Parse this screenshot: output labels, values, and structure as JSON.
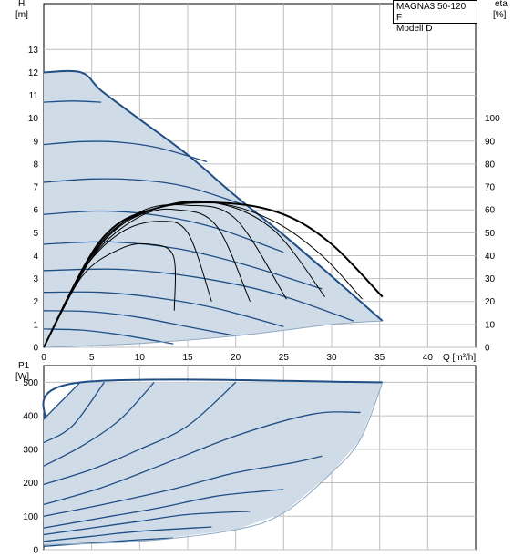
{
  "legend": {
    "model": "MAGNA3 50-120 F",
    "variant": "Modell D"
  },
  "colors": {
    "curve": "#1f4e85",
    "fill": "#cfdbe7",
    "grid": "#c0c0c0",
    "eff": "#000000"
  },
  "chart_data": [
    {
      "type": "line",
      "title": "",
      "ylabel_line1": "H",
      "ylabel_line2": "[m]",
      "y2label_line1": "eta",
      "y2label_line2": "[%]",
      "xlabel": "Q [m³/h]",
      "xlim": [
        0,
        45
      ],
      "ylim": [
        0,
        15
      ],
      "xticks": [
        "5",
        "10",
        "15",
        "20",
        "25",
        "30",
        "35",
        "40"
      ],
      "yticks": [
        "0",
        "1",
        "2",
        "3",
        "4",
        "5",
        "6",
        "7",
        "8",
        "9",
        "10",
        "11",
        "12",
        "13"
      ],
      "y2ticks": [
        "0",
        "10",
        "20",
        "30",
        "40",
        "50",
        "60",
        "70",
        "80",
        "90",
        "100"
      ],
      "y2lim": [
        0,
        150
      ],
      "grid": true,
      "operating_envelope": {
        "max_curve": [
          [
            0,
            12
          ],
          [
            3.9,
            12
          ],
          [
            6,
            11.2
          ],
          [
            10,
            9.95
          ],
          [
            15,
            8.4
          ],
          [
            20,
            6.6
          ],
          [
            25,
            4.9
          ],
          [
            30,
            3.1
          ],
          [
            35.3,
            1.15
          ]
        ],
        "min_curve": [
          [
            0,
            0
          ],
          [
            10,
            0.17
          ],
          [
            20,
            0.5
          ],
          [
            30,
            1.0
          ],
          [
            35.3,
            1.15
          ]
        ]
      },
      "series": [
        {
          "values": [
            [
              0,
              10.7
            ],
            [
              3,
              10.75
            ],
            [
              6,
              10.7
            ]
          ]
        },
        {
          "values": [
            [
              0,
              8.85
            ],
            [
              4,
              8.98
            ],
            [
              8,
              8.95
            ],
            [
              12,
              8.7
            ],
            [
              17,
              8.1
            ]
          ]
        },
        {
          "values": [
            [
              0,
              7.2
            ],
            [
              5,
              7.35
            ],
            [
              10,
              7.3
            ],
            [
              15,
              7.0
            ],
            [
              21,
              6.2
            ]
          ]
        },
        {
          "values": [
            [
              0,
              5.8
            ],
            [
              6,
              5.95
            ],
            [
              12,
              5.75
            ],
            [
              18,
              5.2
            ],
            [
              25,
              4.15
            ]
          ]
        },
        {
          "values": [
            [
              0,
              4.5
            ],
            [
              7,
              4.6
            ],
            [
              14,
              4.3
            ],
            [
              21,
              3.6
            ],
            [
              29,
              2.55
            ]
          ]
        },
        {
          "values": [
            [
              0,
              3.35
            ],
            [
              8,
              3.4
            ],
            [
              16,
              3.05
            ],
            [
              24,
              2.35
            ],
            [
              32.3,
              1.15
            ]
          ]
        },
        {
          "values": [
            [
              0,
              2.4
            ],
            [
              6,
              2.4
            ],
            [
              12,
              2.15
            ],
            [
              18,
              1.7
            ],
            [
              25,
              0.9
            ]
          ]
        },
        {
          "values": [
            [
              0,
              1.6
            ],
            [
              5,
              1.55
            ],
            [
              10,
              1.3
            ],
            [
              15,
              0.9
            ],
            [
              20,
              0.5
            ]
          ]
        },
        {
          "values": [
            [
              0,
              0.8
            ],
            [
              4,
              0.75
            ],
            [
              8,
              0.55
            ],
            [
              13.5,
              0.15
            ]
          ]
        }
      ],
      "efficiency_curves": [
        {
          "values": [
            [
              0,
              0
            ],
            [
              4,
              31
            ],
            [
              8,
              43
            ],
            [
              11,
              45
            ],
            [
              13.5,
              40
            ],
            [
              13.6,
              16
            ]
          ]
        },
        {
          "values": [
            [
              0,
              0
            ],
            [
              4,
              33
            ],
            [
              8,
              50
            ],
            [
              12,
              55
            ],
            [
              15,
              50
            ],
            [
              17.5,
              20
            ]
          ]
        },
        {
          "values": [
            [
              0,
              0
            ],
            [
              5,
              39
            ],
            [
              10,
              57
            ],
            [
              14,
              60
            ],
            [
              18,
              53
            ],
            [
              21.5,
              20
            ]
          ]
        },
        {
          "values": [
            [
              0,
              0
            ],
            [
              5,
              40
            ],
            [
              10,
              59
            ],
            [
              15,
              62
            ],
            [
              20,
              56
            ],
            [
              25.3,
              21
            ]
          ]
        },
        {
          "values": [
            [
              0,
              0
            ],
            [
              6,
              45
            ],
            [
              12,
              61
            ],
            [
              18,
              63
            ],
            [
              24,
              51
            ],
            [
              29.3,
              22
            ]
          ]
        },
        {
          "values": [
            [
              0,
              0
            ],
            [
              6,
              46
            ],
            [
              12,
              61
            ],
            [
              18,
              63
            ],
            [
              24,
              55
            ],
            [
              29,
              40
            ],
            [
              33.2,
              21
            ]
          ]
        },
        {
          "values": [
            [
              0,
              0
            ],
            [
              6,
              47
            ],
            [
              12,
              61
            ],
            [
              19,
              63
            ],
            [
              25,
              58
            ],
            [
              30,
              45
            ],
            [
              35.3,
              22
            ]
          ]
        }
      ]
    },
    {
      "type": "line",
      "title": "",
      "ylabel_line1": "P1",
      "ylabel_line2": "[W]",
      "xlim": [
        0,
        45
      ],
      "ylim": [
        0,
        550
      ],
      "yticks": [
        "0",
        "100",
        "200",
        "300",
        "400",
        "500"
      ],
      "grid": true,
      "operating_envelope": {
        "max_curve": [
          [
            0,
            390
          ],
          [
            3.9,
            500
          ],
          [
            35.3,
            500
          ]
        ],
        "min_curve": [
          [
            0,
            15
          ],
          [
            10,
            25
          ],
          [
            20,
            60
          ],
          [
            25,
            110
          ],
          [
            30,
            230
          ],
          [
            33,
            330
          ],
          [
            35.3,
            500
          ]
        ]
      },
      "series": [
        {
          "values": [
            [
              0,
              390
            ],
            [
              3.8,
              500
            ]
          ]
        },
        {
          "values": [
            [
              0,
              320
            ],
            [
              3,
              370
            ],
            [
              6.3,
              500
            ]
          ]
        },
        {
          "values": [
            [
              0,
              250
            ],
            [
              4,
              310
            ],
            [
              8,
              390
            ],
            [
              11.5,
              500
            ]
          ]
        },
        {
          "values": [
            [
              0,
              195
            ],
            [
              5,
              240
            ],
            [
              10,
              300
            ],
            [
              15,
              370
            ],
            [
              20,
              500
            ]
          ]
        },
        {
          "values": [
            [
              0,
              135
            ],
            [
              6,
              185
            ],
            [
              12,
              250
            ],
            [
              20,
              340
            ],
            [
              28,
              405
            ],
            [
              33,
              410
            ]
          ]
        },
        {
          "values": [
            [
              0,
              100
            ],
            [
              7,
              140
            ],
            [
              14,
              185
            ],
            [
              20,
              230
            ],
            [
              26,
              260
            ],
            [
              29,
              280
            ]
          ]
        },
        {
          "values": [
            [
              0,
              65
            ],
            [
              6,
              95
            ],
            [
              12,
              125
            ],
            [
              18,
              160
            ],
            [
              23,
              175
            ],
            [
              25,
              180
            ]
          ]
        },
        {
          "values": [
            [
              0,
              45
            ],
            [
              5,
              65
            ],
            [
              10,
              85
            ],
            [
              15,
              105
            ],
            [
              21.5,
              115
            ]
          ]
        },
        {
          "values": [
            [
              0,
              25
            ],
            [
              5,
              40
            ],
            [
              10,
              55
            ],
            [
              17.5,
              68
            ]
          ]
        },
        {
          "values": [
            [
              0,
              10
            ],
            [
              5,
              20
            ],
            [
              10,
              30
            ],
            [
              13.5,
              35
            ]
          ]
        }
      ]
    }
  ]
}
